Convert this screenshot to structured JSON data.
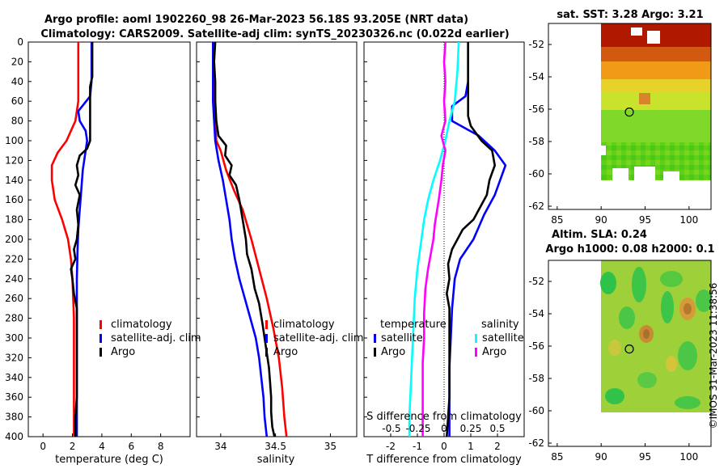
{
  "header": {
    "line1": "Argo profile: aoml 1902260_98 26-Mar-2023 56.18S 93.205E (NRT data)",
    "line2": "Climatology: CARS2009. Satellite-adj clim: synTS_20230326.nc (0.022d earlier)"
  },
  "stamp": "©IMOS 31-Mar-2023 11:38:56",
  "colors": {
    "climatology": "#ff0000",
    "satellite": "#0000ff",
    "argo": "#000000",
    "sat_salinity": "#00ffff",
    "argo_salinity": "#ff00ff"
  },
  "chart_data": [
    {
      "type": "line",
      "name": "temperature",
      "xlabel": "temperature (deg C)",
      "ylabel": "",
      "xlim": [
        -1,
        10
      ],
      "ylim": [
        400,
        0
      ],
      "xticks": [
        0,
        2,
        4,
        6,
        8
      ],
      "yticks": [
        0,
        20,
        40,
        60,
        80,
        100,
        120,
        140,
        160,
        180,
        200,
        220,
        240,
        260,
        280,
        300,
        320,
        340,
        360,
        380,
        400
      ],
      "legend": [
        "climatology",
        "satellite-adj. clim",
        "Argo"
      ],
      "series": [
        {
          "name": "climatology",
          "color": "#ff0000",
          "points": [
            [
              2.4,
              0
            ],
            [
              2.4,
              20
            ],
            [
              2.4,
              40
            ],
            [
              2.4,
              60
            ],
            [
              2.3,
              70
            ],
            [
              2.2,
              80
            ],
            [
              1.9,
              90
            ],
            [
              1.6,
              100
            ],
            [
              1.0,
              112
            ],
            [
              0.6,
              125
            ],
            [
              0.6,
              140
            ],
            [
              0.8,
              160
            ],
            [
              1.3,
              180
            ],
            [
              1.7,
              200
            ],
            [
              1.9,
              220
            ],
            [
              2.0,
              240
            ],
            [
              2.05,
              260
            ],
            [
              2.1,
              280
            ],
            [
              2.1,
              300
            ],
            [
              2.1,
              320
            ],
            [
              2.1,
              340
            ],
            [
              2.1,
              360
            ],
            [
              2.1,
              380
            ],
            [
              2.1,
              400
            ]
          ]
        },
        {
          "name": "satellite-adj. clim",
          "color": "#0000ff",
          "points": [
            [
              3.3,
              0
            ],
            [
              3.3,
              20
            ],
            [
              3.3,
              40
            ],
            [
              3.2,
              55
            ],
            [
              2.4,
              70
            ],
            [
              2.5,
              80
            ],
            [
              2.9,
              90
            ],
            [
              3.0,
              100
            ],
            [
              2.9,
              110
            ],
            [
              2.7,
              130
            ],
            [
              2.6,
              150
            ],
            [
              2.5,
              170
            ],
            [
              2.4,
              190
            ],
            [
              2.35,
              210
            ],
            [
              2.3,
              240
            ],
            [
              2.3,
              270
            ],
            [
              2.3,
              300
            ],
            [
              2.3,
              330
            ],
            [
              2.3,
              360
            ],
            [
              2.3,
              400
            ]
          ]
        },
        {
          "name": "Argo",
          "color": "#000000",
          "points": [
            [
              3.35,
              0
            ],
            [
              3.35,
              20
            ],
            [
              3.35,
              35
            ],
            [
              3.2,
              45
            ],
            [
              3.2,
              60
            ],
            [
              3.2,
              80
            ],
            [
              3.2,
              100
            ],
            [
              3.0,
              108
            ],
            [
              2.5,
              115
            ],
            [
              2.3,
              125
            ],
            [
              2.4,
              135
            ],
            [
              2.2,
              145
            ],
            [
              2.5,
              155
            ],
            [
              2.3,
              170
            ],
            [
              2.4,
              185
            ],
            [
              2.3,
              200
            ],
            [
              2.1,
              210
            ],
            [
              2.2,
              220
            ],
            [
              1.9,
              230
            ],
            [
              2.0,
              240
            ],
            [
              2.1,
              255
            ],
            [
              2.3,
              270
            ],
            [
              2.3,
              290
            ],
            [
              2.3,
              310
            ],
            [
              2.3,
              340
            ],
            [
              2.3,
              360
            ],
            [
              2.2,
              380
            ],
            [
              2.2,
              400
            ]
          ]
        }
      ]
    },
    {
      "type": "line",
      "name": "salinity",
      "xlabel": "salinity",
      "xlim": [
        33.78,
        35.24
      ],
      "ylim": [
        400,
        0
      ],
      "xticks": [
        34,
        34.5,
        35
      ],
      "xticklabels": [
        "34",
        "34.5",
        "35"
      ],
      "legend": [
        "climatology",
        "satellite-adj. clim",
        "Argo"
      ],
      "series": [
        {
          "name": "climatology",
          "color": "#ff0000",
          "points": [
            [
              33.94,
              0
            ],
            [
              33.94,
              40
            ],
            [
              33.95,
              80
            ],
            [
              33.96,
              100
            ],
            [
              34.0,
              110
            ],
            [
              34.05,
              130
            ],
            [
              34.12,
              150
            ],
            [
              34.2,
              170
            ],
            [
              34.28,
              200
            ],
            [
              34.35,
              230
            ],
            [
              34.42,
              260
            ],
            [
              34.48,
              290
            ],
            [
              34.53,
              320
            ],
            [
              34.56,
              350
            ],
            [
              34.58,
              380
            ],
            [
              34.6,
              400
            ]
          ]
        },
        {
          "name": "satellite-adj. clim",
          "color": "#0000ff",
          "points": [
            [
              33.93,
              0
            ],
            [
              33.93,
              40
            ],
            [
              33.93,
              60
            ],
            [
              33.94,
              80
            ],
            [
              33.95,
              100
            ],
            [
              33.98,
              120
            ],
            [
              34.02,
              140
            ],
            [
              34.05,
              160
            ],
            [
              34.08,
              180
            ],
            [
              34.1,
              200
            ],
            [
              34.13,
              220
            ],
            [
              34.17,
              240
            ],
            [
              34.22,
              260
            ],
            [
              34.27,
              280
            ],
            [
              34.32,
              300
            ],
            [
              34.35,
              320
            ],
            [
              34.37,
              340
            ],
            [
              34.39,
              360
            ],
            [
              34.4,
              380
            ],
            [
              34.42,
              400
            ]
          ]
        },
        {
          "name": "Argo",
          "color": "#000000",
          "points": [
            [
              33.95,
              0
            ],
            [
              33.94,
              20
            ],
            [
              33.95,
              40
            ],
            [
              33.95,
              60
            ],
            [
              33.96,
              80
            ],
            [
              33.98,
              95
            ],
            [
              34.05,
              105
            ],
            [
              34.04,
              115
            ],
            [
              34.1,
              125
            ],
            [
              34.08,
              135
            ],
            [
              34.14,
              145
            ],
            [
              34.17,
              160
            ],
            [
              34.2,
              180
            ],
            [
              34.23,
              200
            ],
            [
              34.24,
              215
            ],
            [
              34.28,
              230
            ],
            [
              34.31,
              250
            ],
            [
              34.35,
              265
            ],
            [
              34.38,
              285
            ],
            [
              34.4,
              300
            ],
            [
              34.42,
              315
            ],
            [
              34.44,
              330
            ],
            [
              34.45,
              345
            ],
            [
              34.46,
              360
            ],
            [
              34.46,
              375
            ],
            [
              34.47,
              390
            ],
            [
              34.49,
              400
            ]
          ]
        }
      ]
    },
    {
      "type": "line",
      "name": "difference",
      "xlabel": "T difference from climatology",
      "x2label": "S difference from climatology",
      "xlim": [
        -3.0,
        3.0
      ],
      "ylim": [
        400,
        0
      ],
      "xticks": [
        -2,
        -1,
        0,
        1,
        2
      ],
      "x2ticks": [
        "-0.5",
        "-0.25",
        "0",
        "0.25",
        "0.5"
      ],
      "legend_left_title": "temperature",
      "legend_left": [
        "satellite",
        "Argo"
      ],
      "legend_right_title": "salinity",
      "legend_right": [
        "satellite",
        "Argo"
      ],
      "series": [
        {
          "name": "T satellite",
          "color": "#0000ff",
          "points": [
            [
              0.9,
              0
            ],
            [
              0.9,
              20
            ],
            [
              0.9,
              40
            ],
            [
              0.8,
              55
            ],
            [
              0.3,
              65
            ],
            [
              0.3,
              80
            ],
            [
              1.3,
              95
            ],
            [
              1.9,
              110
            ],
            [
              2.3,
              125
            ],
            [
              2.1,
              140
            ],
            [
              1.9,
              155
            ],
            [
              1.5,
              175
            ],
            [
              1.1,
              200
            ],
            [
              0.6,
              220
            ],
            [
              0.4,
              240
            ],
            [
              0.3,
              270
            ],
            [
              0.25,
              300
            ],
            [
              0.2,
              330
            ],
            [
              0.2,
              370
            ],
            [
              0.2,
              400
            ]
          ]
        },
        {
          "name": "T Argo",
          "color": "#000000",
          "points": [
            [
              0.9,
              0
            ],
            [
              0.9,
              20
            ],
            [
              0.9,
              40
            ],
            [
              0.9,
              55
            ],
            [
              0.9,
              75
            ],
            [
              1.0,
              85
            ],
            [
              1.4,
              100
            ],
            [
              1.8,
              110
            ],
            [
              1.9,
              125
            ],
            [
              1.7,
              140
            ],
            [
              1.6,
              155
            ],
            [
              1.3,
              170
            ],
            [
              1.1,
              180
            ],
            [
              0.7,
              190
            ],
            [
              0.5,
              200
            ],
            [
              0.3,
              210
            ],
            [
              0.15,
              225
            ],
            [
              0.2,
              240
            ],
            [
              0.1,
              255
            ],
            [
              0.2,
              270
            ],
            [
              0.2,
              290
            ],
            [
              0.2,
              310
            ],
            [
              0.2,
              340
            ],
            [
              0.2,
              360
            ],
            [
              0.15,
              380
            ],
            [
              0.1,
              400
            ]
          ]
        },
        {
          "name": "S satellite",
          "color": "#00ffff",
          "points": [
            [
              0.55,
              0
            ],
            [
              0.5,
              30
            ],
            [
              0.4,
              60
            ],
            [
              0.2,
              80
            ],
            [
              0.05,
              100
            ],
            [
              -0.15,
              120
            ],
            [
              -0.4,
              140
            ],
            [
              -0.6,
              160
            ],
            [
              -0.75,
              180
            ],
            [
              -0.85,
              200
            ],
            [
              -1.0,
              230
            ],
            [
              -1.1,
              260
            ],
            [
              -1.15,
              290
            ],
            [
              -1.2,
              320
            ],
            [
              -1.25,
              350
            ],
            [
              -1.3,
              380
            ],
            [
              -1.3,
              400
            ]
          ]
        },
        {
          "name": "S Argo",
          "color": "#ff00ff",
          "points": [
            [
              0.05,
              0
            ],
            [
              0.0,
              20
            ],
            [
              0.05,
              40
            ],
            [
              0.0,
              60
            ],
            [
              0.05,
              80
            ],
            [
              -0.1,
              95
            ],
            [
              0.05,
              110
            ],
            [
              -0.05,
              125
            ],
            [
              -0.1,
              140
            ],
            [
              -0.2,
              160
            ],
            [
              -0.35,
              185
            ],
            [
              -0.4,
              200
            ],
            [
              -0.5,
              215
            ],
            [
              -0.6,
              230
            ],
            [
              -0.7,
              250
            ],
            [
              -0.75,
              275
            ],
            [
              -0.75,
              300
            ],
            [
              -0.8,
              325
            ],
            [
              -0.8,
              350
            ],
            [
              -0.8,
              375
            ],
            [
              -0.8,
              400
            ]
          ]
        }
      ]
    },
    {
      "type": "heatmap",
      "name": "sst_map",
      "title": "sat. SST: 3.28 Argo: 3.21",
      "xlim": [
        84,
        102.5
      ],
      "ylim": [
        -62.2,
        -50.7
      ],
      "xticks": [
        85,
        90,
        95,
        100
      ],
      "yticks": [
        -62,
        -60,
        -58,
        -56,
        -54,
        -52
      ],
      "marker": {
        "lon": 93.2,
        "lat": -56.18
      }
    },
    {
      "type": "heatmap",
      "name": "sla_map",
      "title_line1": "Altim. SLA: 0.24",
      "title_line2": "Argo h1000: 0.08 h2000: 0.1",
      "xlim": [
        84,
        102.5
      ],
      "ylim": [
        -62.2,
        -50.7
      ],
      "xticks": [
        85,
        90,
        95,
        100
      ],
      "yticks": [
        -62,
        -60,
        -58,
        -56,
        -54,
        -52
      ],
      "marker": {
        "lon": 93.2,
        "lat": -56.18
      }
    }
  ]
}
